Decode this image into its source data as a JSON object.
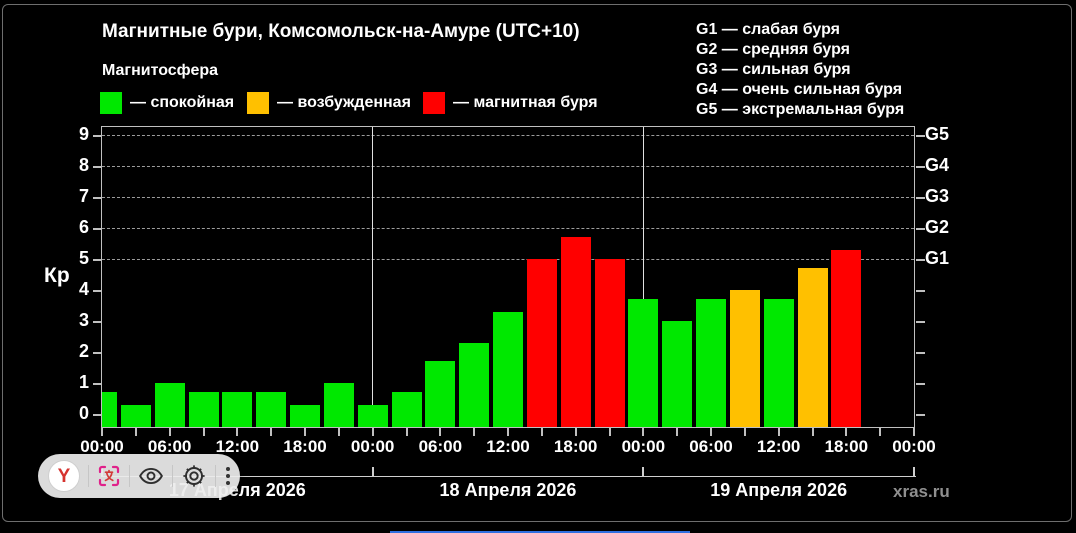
{
  "chart_data": {
    "type": "bar",
    "title": "Магнитные бури, Комсомольск-на-Амуре (UTC+10)",
    "subtitle": "Магнитосфера",
    "ylabel": "Кр",
    "ylim": [
      0,
      9
    ],
    "yticks": [
      0,
      1,
      2,
      3,
      4,
      5,
      6,
      7,
      8,
      9
    ],
    "grid_levels": [
      {
        "kp": 5,
        "right_label": "G1"
      },
      {
        "kp": 6,
        "right_label": "G2"
      },
      {
        "kp": 7,
        "right_label": "G3"
      },
      {
        "kp": 8,
        "right_label": "G4"
      },
      {
        "kp": 9,
        "right_label": "G5"
      }
    ],
    "x_labels": [
      "00:00",
      "06:00",
      "12:00",
      "18:00",
      "00:00",
      "06:00",
      "12:00",
      "18:00",
      "00:00",
      "06:00",
      "12:00",
      "18:00",
      "00:00"
    ],
    "bar_interval_hours": 3,
    "legend": [
      {
        "label": "— спокойная",
        "color": "#00e800",
        "state": "quiet"
      },
      {
        "label": "— возбужденная",
        "color": "#ffc000",
        "state": "excited"
      },
      {
        "label": "— магнитная буря",
        "color": "#ff0000",
        "state": "storm"
      }
    ],
    "storm_scale": [
      "G1 — слабая буря",
      "G2 — средняя буря",
      "G3 — сильная буря",
      "G4 — очень сильная буря",
      "G5 — экстремальная буря"
    ],
    "palette": {
      "green": "#00e800",
      "orange": "#ffc000",
      "red": "#ff0000"
    },
    "days": [
      {
        "date": "17 Апреля 2026",
        "values": [
          0.7,
          0.3,
          1.0,
          0.7,
          0.7,
          0.7,
          0.3,
          1.0
        ],
        "colors": [
          "green",
          "green",
          "green",
          "green",
          "green",
          "green",
          "green",
          "green"
        ]
      },
      {
        "date": "18 Апреля 2026",
        "values": [
          0.3,
          0.7,
          1.7,
          2.3,
          3.3,
          5.0,
          5.7,
          5.0
        ],
        "colors": [
          "green",
          "green",
          "green",
          "green",
          "green",
          "red",
          "red",
          "red"
        ]
      },
      {
        "date": "19 Апреля 2026",
        "values": [
          3.7,
          3.0,
          3.7,
          4.0,
          3.7,
          4.7,
          5.3,
          null
        ],
        "colors": [
          "green",
          "green",
          "green",
          "orange",
          "green",
          "orange",
          "red",
          null
        ]
      }
    ],
    "watermark": "xras.ru"
  },
  "toolbar": {
    "logo_letter": "Y",
    "icons": [
      "yandex-logo",
      "screen-translate",
      "eye",
      "settings",
      "more-menu"
    ]
  }
}
